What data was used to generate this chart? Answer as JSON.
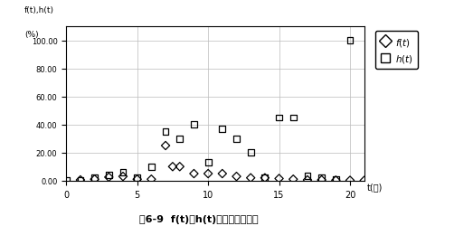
{
  "title": "图6-9  f(t)、h(t)统计数据散点图",
  "ylabel_line1": "f(t),h(t)",
  "ylabel_line2": "(%)",
  "xlabel": "t(年)",
  "xlim": [
    0,
    21
  ],
  "ylim": [
    0,
    110
  ],
  "yticks": [
    0.0,
    20.0,
    40.0,
    60.0,
    80.0,
    100.0
  ],
  "xticks": [
    0,
    5,
    10,
    15,
    20
  ],
  "ft_x": [
    1,
    2,
    3,
    4,
    5,
    6,
    7,
    7.5,
    8,
    9,
    10,
    11,
    12,
    13,
    14,
    15,
    16,
    17,
    18,
    19,
    20,
    21
  ],
  "ft_y": [
    0.5,
    1.0,
    2.5,
    3.0,
    1.0,
    1.0,
    25.0,
    10.0,
    10.0,
    5.0,
    5.0,
    5.0,
    3.0,
    2.0,
    2.0,
    1.5,
    1.0,
    0.5,
    0.5,
    0.3,
    0.2,
    0.1
  ],
  "ht_x": [
    0,
    1,
    2,
    3,
    4,
    5,
    6,
    7,
    8,
    9,
    10,
    11,
    12,
    13,
    14,
    15,
    16,
    17,
    18,
    19,
    20
  ],
  "ht_y": [
    0,
    0.5,
    2.0,
    4.0,
    6.0,
    2.0,
    10.0,
    35.0,
    30.0,
    40.0,
    13.0,
    37.0,
    30.0,
    20.0,
    2.0,
    45.0,
    45.0,
    3.5,
    2.0,
    1.0,
    100.0
  ],
  "bg_color": "#ffffff",
  "marker_color": "#000000",
  "grid_color": "#bbbbbb",
  "legend_ft": "f(t)",
  "legend_ht": "h(t)"
}
